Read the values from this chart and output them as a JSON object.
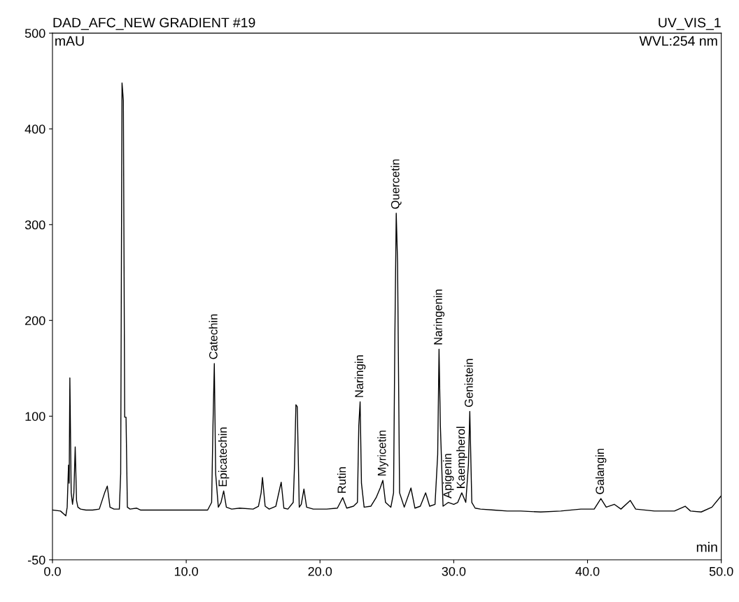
{
  "chart_data": {
    "type": "line",
    "title": "DAD_AFC_NEW GRADIENT #19",
    "subtitle": "UV_VIS_1",
    "xlabel": "min",
    "ylabel": "mAU",
    "xlim": [
      0,
      50
    ],
    "ylim": [
      -50,
      500
    ],
    "xticks": [
      {
        "value": 0,
        "label": "0.0"
      },
      {
        "value": 10,
        "label": "10.0"
      },
      {
        "value": 20,
        "label": "20.0"
      },
      {
        "value": 30,
        "label": "30.0"
      },
      {
        "value": 40,
        "label": "40.0"
      },
      {
        "value": 50,
        "label": "50.0"
      }
    ],
    "yticks": [
      -50,
      100,
      200,
      300,
      400,
      500
    ],
    "grid": false,
    "legend": false,
    "marker": "none",
    "line_style": "solid",
    "series": [
      {
        "color": "#000000",
        "x": [
          0,
          0.6,
          1.0,
          1.1,
          1.2,
          1.25,
          1.3,
          1.4,
          1.5,
          1.6,
          1.7,
          1.8,
          1.9,
          2.1,
          2.5,
          3.0,
          3.5,
          3.9,
          4.1,
          4.3,
          4.6,
          5.0,
          5.1,
          5.2,
          5.3,
          5.4,
          5.5,
          5.6,
          5.8,
          6.3,
          6.6,
          7.0,
          8.0,
          9.0,
          10.0,
          11.0,
          11.6,
          11.9,
          12.0,
          12.1,
          12.2,
          12.4,
          12.6,
          12.8,
          13.0,
          13.4,
          14.0,
          15.0,
          15.4,
          15.6,
          15.7,
          15.9,
          16.2,
          16.7,
          17.0,
          17.1,
          17.3,
          17.6,
          18.0,
          18.1,
          18.2,
          18.3,
          18.45,
          18.6,
          18.8,
          19.0,
          19.5,
          20.5,
          21.3,
          21.7,
          22.0,
          22.5,
          22.8,
          22.9,
          23.0,
          23.1,
          23.3,
          23.8,
          24.2,
          24.5,
          24.7,
          24.9,
          25.3,
          25.5,
          25.6,
          25.7,
          25.8,
          25.95,
          26.3,
          26.8,
          27.1,
          27.5,
          27.9,
          28.2,
          28.6,
          28.8,
          28.9,
          29.0,
          29.2,
          29.6,
          30.0,
          30.3,
          30.6,
          30.9,
          31.1,
          31.2,
          31.35,
          31.6,
          32.0,
          33.0,
          34.0,
          35.0,
          36.5,
          38.0,
          39.5,
          40.5,
          41.0,
          41.4,
          42.0,
          42.5,
          43.2,
          43.6,
          45.0,
          46.5,
          47.3,
          47.7,
          48.5,
          49.3,
          50.0
        ],
        "values": [
          2,
          1,
          -4,
          5,
          49,
          30,
          140,
          20,
          8,
          20,
          68,
          12,
          5,
          3,
          2,
          2,
          3,
          20,
          27,
          5,
          3,
          3,
          40,
          448,
          430,
          99,
          99,
          5,
          3,
          4,
          2,
          2,
          2,
          2,
          2,
          2,
          2,
          10,
          90,
          155,
          40,
          5,
          10,
          22,
          5,
          3,
          4,
          3,
          6,
          20,
          36,
          6,
          3,
          6,
          25,
          31,
          4,
          3,
          10,
          50,
          112,
          110,
          5,
          8,
          24,
          5,
          3,
          3,
          4,
          15,
          4,
          6,
          10,
          90,
          115,
          30,
          5,
          6,
          15,
          25,
          33,
          10,
          5,
          20,
          185,
          312,
          260,
          20,
          5,
          25,
          4,
          6,
          20,
          6,
          8,
          60,
          170,
          90,
          6,
          10,
          8,
          10,
          20,
          10,
          50,
          105,
          10,
          4,
          3,
          2,
          1,
          1,
          0,
          1,
          3,
          3,
          14,
          5,
          8,
          3,
          12,
          3,
          1,
          1,
          6,
          1,
          0,
          5,
          17
        ]
      }
    ],
    "annotations": [
      {
        "text": "Catechin",
        "x": 12.1,
        "y": 155
      },
      {
        "text": "Epicatechin",
        "x": 12.8,
        "y": 22
      },
      {
        "text": "Rutin",
        "x": 21.7,
        "y": 15
      },
      {
        "text": "Naringin",
        "x": 23.0,
        "y": 115
      },
      {
        "text": "Myricetin",
        "x": 24.7,
        "y": 33
      },
      {
        "text": "Quercetin",
        "x": 25.7,
        "y": 312
      },
      {
        "text": "Naringenin",
        "x": 28.9,
        "y": 170
      },
      {
        "text": "Apigenin",
        "x": 29.6,
        "y": 10
      },
      {
        "text": "Kaempherol",
        "x": 30.6,
        "y": 20
      },
      {
        "text": "Genistein",
        "x": 31.2,
        "y": 105
      },
      {
        "text": "Galangin",
        "x": 41.0,
        "y": 14
      },
      "WVL:254 nm"
    ]
  }
}
